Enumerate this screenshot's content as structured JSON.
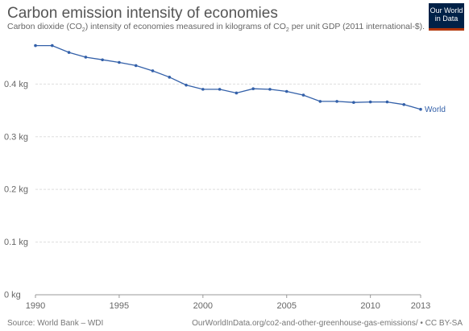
{
  "header": {
    "title": "Carbon emission intensity of economies",
    "subtitle_pre": "Carbon dioxide (CO",
    "subtitle_sub1": "2",
    "subtitle_mid": ") intensity of economies measured in kilograms of CO",
    "subtitle_sub2": "2",
    "subtitle_post": " per unit GDP (2011 international-$)."
  },
  "logo": {
    "line1": "Our World",
    "line2": "in Data"
  },
  "footer": {
    "source": "Source: World Bank – WDI",
    "url": "OurWorldInData.org/co2-and-other-greenhouse-gas-emissions/ • CC BY-SA"
  },
  "colors": {
    "series": "#3360a9",
    "grid": "#dddddd",
    "text": "#666666"
  },
  "chart_data": {
    "type": "line",
    "title": "Carbon emission intensity of economies",
    "ylim": [
      0,
      0.48
    ],
    "xlim": [
      1990,
      2013
    ],
    "y_ticks": [
      0,
      0.1,
      0.2,
      0.3,
      0.4
    ],
    "y_tick_labels": [
      "0 kg",
      "0.1 kg",
      "0.2 kg",
      "0.3 kg",
      "0.4 kg"
    ],
    "x_ticks": [
      1990,
      1995,
      2000,
      2005,
      2010,
      2013
    ],
    "x_tick_labels": [
      "1990",
      "1995",
      "2000",
      "2005",
      "2010",
      "2013"
    ],
    "grid": "horizontal dashed",
    "series": [
      {
        "name": "World",
        "x": [
          1990,
          1991,
          1992,
          1993,
          1994,
          1995,
          1996,
          1997,
          1998,
          1999,
          2000,
          2001,
          2002,
          2003,
          2004,
          2005,
          2006,
          2007,
          2008,
          2009,
          2010,
          2011,
          2012,
          2013
        ],
        "values": [
          0.473,
          0.473,
          0.46,
          0.451,
          0.446,
          0.441,
          0.435,
          0.425,
          0.413,
          0.398,
          0.39,
          0.39,
          0.383,
          0.391,
          0.39,
          0.386,
          0.379,
          0.367,
          0.367,
          0.365,
          0.366,
          0.366,
          0.361,
          0.352
        ]
      }
    ]
  }
}
